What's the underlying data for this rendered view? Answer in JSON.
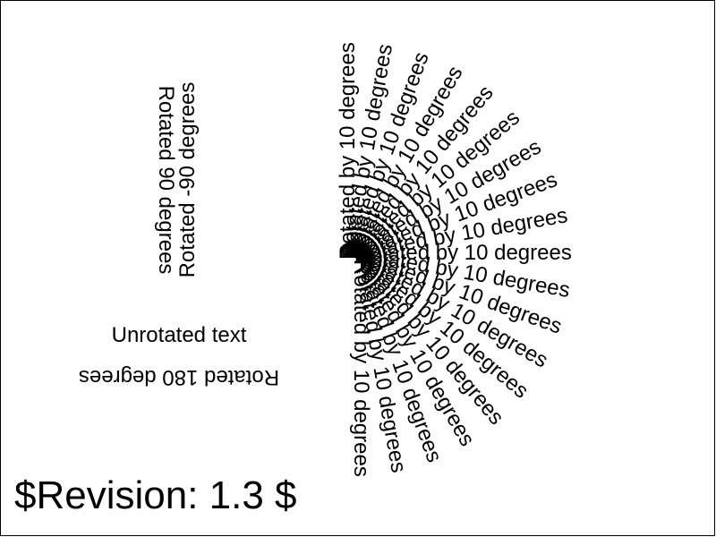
{
  "texts": {
    "rotated_90": "Rotated 90 degrees",
    "rotated_minus_90": "Rotated -90 degrees",
    "unrotated": "Unrotated text",
    "rotated_180": "Rotated 180 degrees",
    "revision": "$Revision: 1.3 $"
  },
  "fan": {
    "label": "Rotated by 10 degrees",
    "angle_start": -90,
    "angle_end": 90,
    "angle_step": 10
  },
  "colors": {
    "text": "#000000",
    "background": "#ffffff",
    "border": "#000000"
  }
}
